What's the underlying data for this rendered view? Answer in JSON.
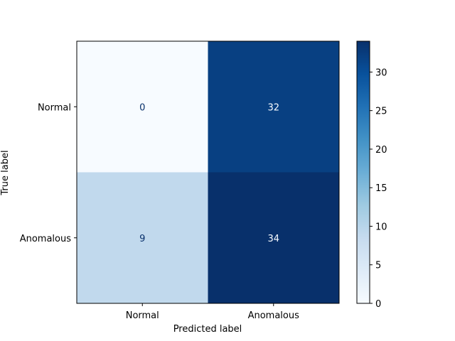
{
  "chart_data": {
    "type": "heatmap",
    "x_categories": [
      "Normal",
      "Anomalous"
    ],
    "y_categories": [
      "Normal",
      "Anomalous"
    ],
    "values": [
      [
        0,
        32
      ],
      [
        9,
        34
      ]
    ],
    "xlabel": "Predicted label",
    "ylabel": "True label",
    "colormap": "Blues",
    "colorbar": {
      "vmin": 0,
      "vmax": 34,
      "ticks": [
        0,
        5,
        10,
        15,
        20,
        25,
        30
      ]
    }
  }
}
